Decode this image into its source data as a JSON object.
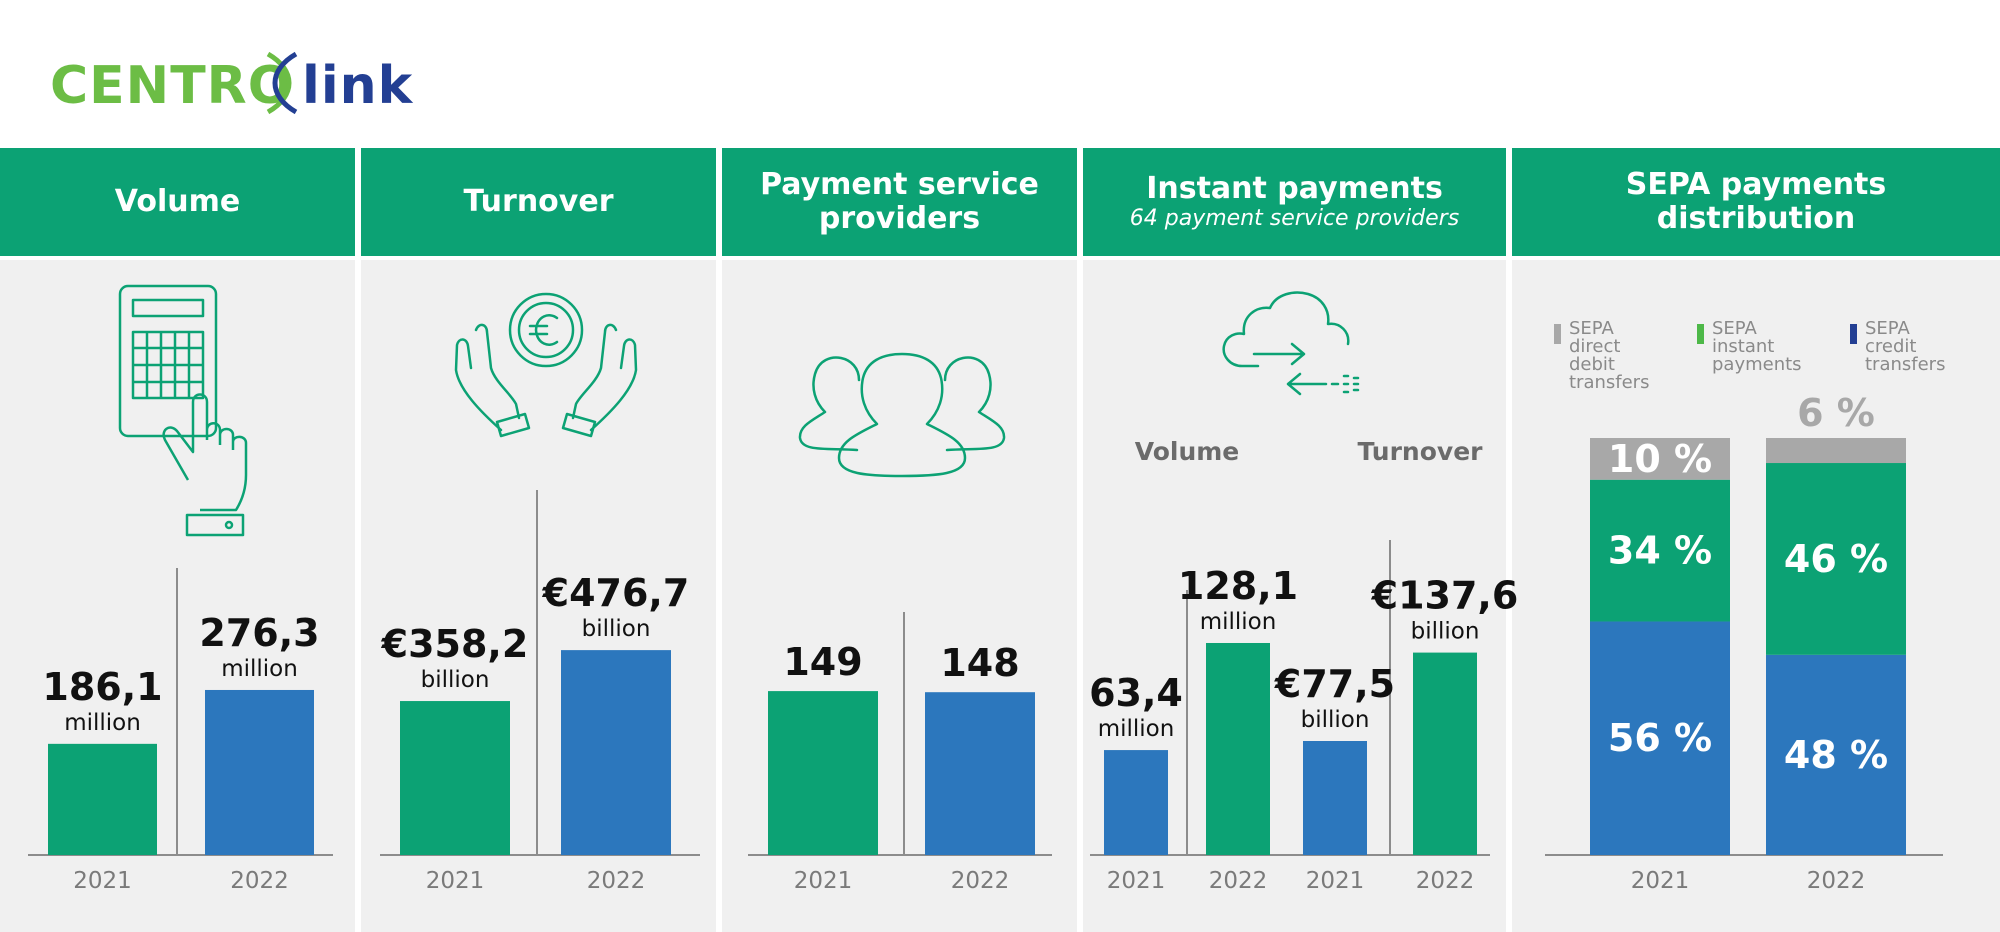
{
  "logo": {
    "part1": "CENTRO",
    "part2": "link"
  },
  "colors": {
    "green": "#0ca274",
    "blue": "#2c77bd",
    "grey": "#a8a8a8",
    "dark": "#111111",
    "axis": "#8c8c8c",
    "tick": "#7a7a7a",
    "lightgreen": "#4db848",
    "navy": "#233f93"
  },
  "panels": [
    {
      "title": "Volume",
      "subtitle": ""
    },
    {
      "title": "Turnover",
      "subtitle": ""
    },
    {
      "title": "Payment service providers",
      "subtitle": ""
    },
    {
      "title": "Instant payments",
      "subtitle": "64 payment service providers"
    },
    {
      "title": "SEPA payments distribution",
      "subtitle": ""
    }
  ],
  "instant_groups": {
    "volume": "Volume",
    "turnover": "Turnover"
  },
  "legend": [
    {
      "label": "SEPA direct debit transfers",
      "color": "#a8a8a8"
    },
    {
      "label": "SEPA instant payments",
      "color": "#4db848"
    },
    {
      "label": "SEPA credit transfers",
      "color": "#233f93"
    }
  ],
  "chart_data": [
    {
      "type": "bar",
      "title": "Volume",
      "categories": [
        "2021",
        "2022"
      ],
      "values": [
        186.1,
        276.3
      ],
      "value_labels": [
        "186,1",
        "276,3"
      ],
      "units": [
        "million",
        "million"
      ],
      "colors": [
        "#0ca274",
        "#2c77bd"
      ]
    },
    {
      "type": "bar",
      "title": "Turnover",
      "categories": [
        "2021",
        "2022"
      ],
      "values": [
        358.2,
        476.7
      ],
      "value_labels": [
        "€358,2",
        "€476,7"
      ],
      "units": [
        "billion",
        "billion"
      ],
      "colors": [
        "#0ca274",
        "#2c77bd"
      ]
    },
    {
      "type": "bar",
      "title": "Payment service providers",
      "categories": [
        "2021",
        "2022"
      ],
      "values": [
        149,
        148
      ],
      "value_labels": [
        "149",
        "148"
      ],
      "units": [
        "",
        ""
      ],
      "colors": [
        "#0ca274",
        "#2c77bd"
      ]
    },
    {
      "type": "bar",
      "title": "Instant payments",
      "categories": [
        "2021",
        "2022",
        "2021",
        "2022"
      ],
      "values": [
        63.4,
        128.1,
        77.5,
        137.6
      ],
      "value_labels": [
        "63,4",
        "128,1",
        "€77,5",
        "€137,6"
      ],
      "units": [
        "million",
        "million",
        "billion",
        "billion"
      ],
      "colors": [
        "#2c77bd",
        "#0ca274",
        "#2c77bd",
        "#0ca274"
      ]
    },
    {
      "type": "bar",
      "title": "SEPA payments distribution",
      "stacked": true,
      "categories": [
        "2021",
        "2022"
      ],
      "series": [
        {
          "name": "SEPA credit transfers",
          "values": [
            56,
            48
          ],
          "color": "#2c77bd",
          "labels": [
            "56 %",
            "48 %"
          ]
        },
        {
          "name": "SEPA instant payments",
          "values": [
            34,
            46
          ],
          "color": "#0ca274",
          "labels": [
            "34 %",
            "46 %"
          ]
        },
        {
          "name": "SEPA direct debit transfers",
          "values": [
            10,
            6
          ],
          "color": "#a8a8a8",
          "labels": [
            "10 %",
            "6 %"
          ]
        }
      ]
    }
  ]
}
